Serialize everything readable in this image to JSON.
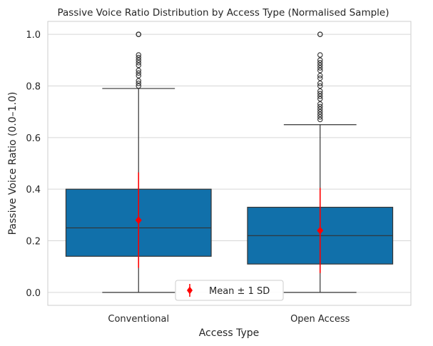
{
  "chart_data": {
    "type": "box",
    "title": "Passive Voice Ratio Distribution by Access Type (Normalised Sample)",
    "xlabel": "Access Type",
    "ylabel": "Passive Voice Ratio (0.0–1.0)",
    "ylim": [
      -0.05,
      1.05
    ],
    "yticks": [
      0.0,
      0.2,
      0.4,
      0.6,
      0.8,
      1.0
    ],
    "ytick_labels": [
      "0.0",
      "0.2",
      "0.4",
      "0.6",
      "0.8",
      "1.0"
    ],
    "grid": true,
    "legend": {
      "position": "bottom-center",
      "entries": [
        "Mean ± 1 SD"
      ]
    },
    "colors": {
      "box": "#1170aa",
      "mean": "#ff0000",
      "grid": "#d6d6d6",
      "line": "#333333"
    },
    "categories": [
      "Conventional",
      "Open Access"
    ],
    "boxes": [
      {
        "name": "Conventional",
        "min": 0.0,
        "q1": 0.14,
        "median": 0.25,
        "q3": 0.4,
        "max": 0.79,
        "outliers": [
          0.8,
          0.81,
          0.82,
          0.84,
          0.85,
          0.86,
          0.88,
          0.89,
          0.9,
          0.91,
          0.92,
          1.0,
          1.0,
          1.0
        ],
        "mean": 0.28,
        "sd": 0.185
      },
      {
        "name": "Open Access",
        "min": 0.0,
        "q1": 0.11,
        "median": 0.22,
        "q3": 0.33,
        "max": 0.65,
        "outliers": [
          0.67,
          0.68,
          0.69,
          0.7,
          0.71,
          0.72,
          0.73,
          0.75,
          0.76,
          0.77,
          0.78,
          0.8,
          0.81,
          0.83,
          0.84,
          0.86,
          0.87,
          0.88,
          0.89,
          0.9,
          0.92,
          1.0,
          1.0
        ],
        "mean": 0.24,
        "sd": 0.165
      }
    ]
  }
}
